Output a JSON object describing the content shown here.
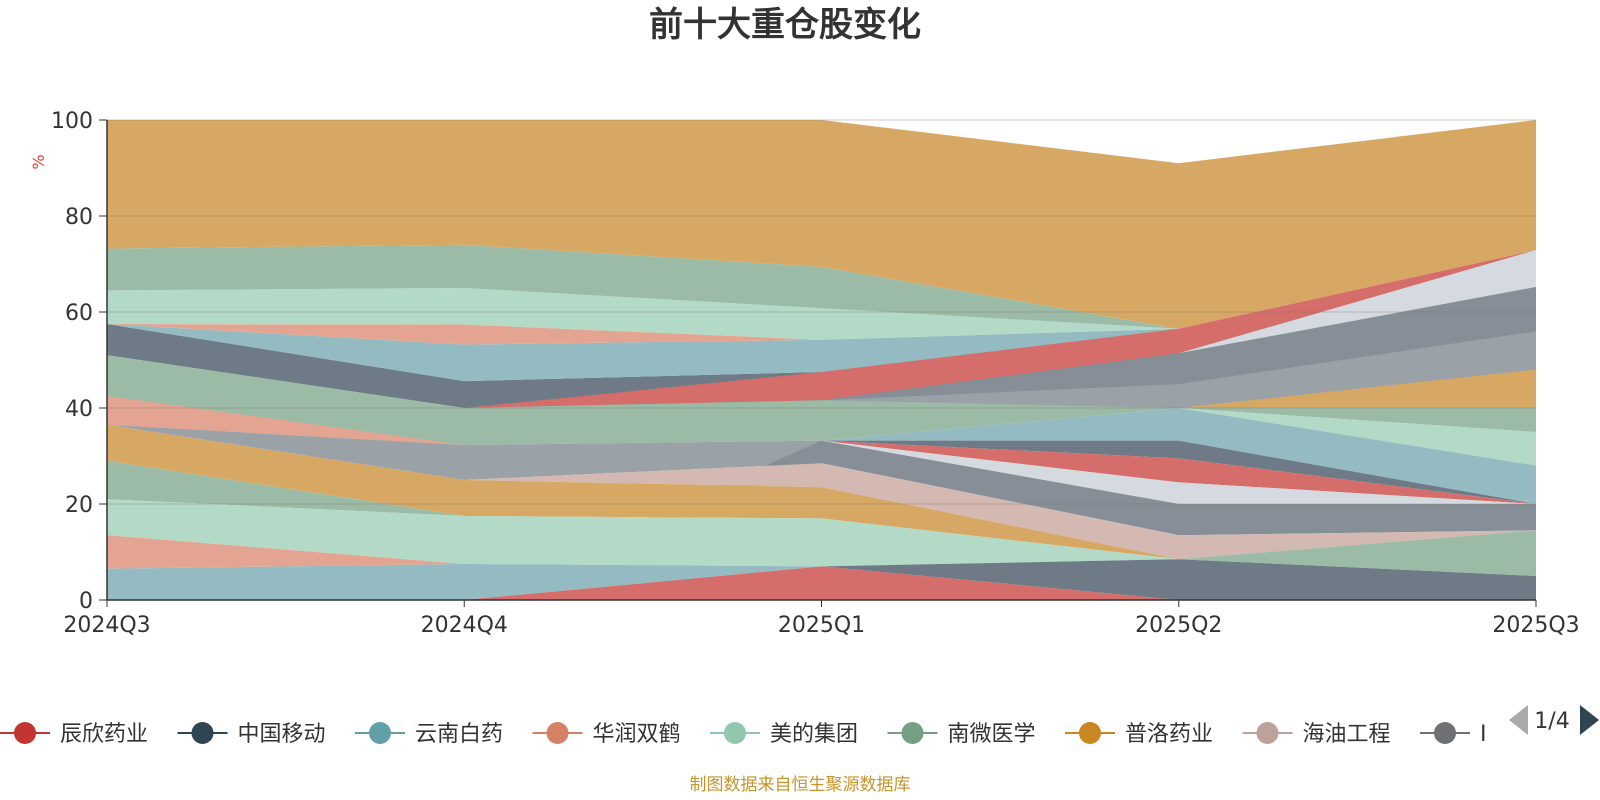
{
  "chart_data": {
    "type": "area",
    "title": "前十大重仓股变化",
    "ylabel": "%",
    "ylim": [
      0,
      100
    ],
    "yticks": [
      "0",
      "20",
      "40",
      "60",
      "80",
      "100"
    ],
    "categories": [
      "2024Q3",
      "2024Q4",
      "2025Q1",
      "2025Q2",
      "2025Q3"
    ],
    "bands": [
      {
        "name": "band-01",
        "color": "#6e7b87",
        "lower": [
          51.0,
          40.0,
          40.0,
          40.0,
          40.0
        ],
        "upper": [
          57.5,
          45.6,
          47.5,
          51.4,
          65.2
        ]
      },
      {
        "name": "band-02",
        "color": "#d4a7a1",
        "lower": [
          0,
          0,
          0,
          0,
          0
        ],
        "upper": [
          0,
          0,
          0,
          0,
          0
        ]
      },
      {
        "name": "band-03",
        "color": "#93bbc1",
        "lower": [
          57.5,
          45.6,
          47.5,
          51.4,
          65.2
        ],
        "upper": [
          57.5,
          53.2,
          54.2,
          56.5,
          65.2
        ]
      },
      {
        "name": "band-04",
        "color": "#e3a592",
        "lower": [
          57.5,
          53.2,
          54.2,
          56.5,
          65.2
        ],
        "upper": [
          57.5,
          57.4,
          54.2,
          56.5,
          65.2
        ]
      },
      {
        "name": "band-05",
        "color": "#b3dac7",
        "lower": [
          57.5,
          57.4,
          54.2,
          56.5,
          65.2
        ],
        "upper": [
          64.5,
          65.0,
          60.8,
          56.5,
          65.2
        ]
      },
      {
        "name": "band-06",
        "color": "#9cbba6",
        "lower": [
          64.5,
          65.0,
          60.8,
          56.5,
          65.2
        ],
        "upper": [
          73.2,
          74.0,
          69.4,
          56.5,
          65.2
        ]
      },
      {
        "name": "band-07",
        "color": "#d6a864",
        "lower": [
          73.2,
          74.0,
          69.4,
          56.5,
          72.9
        ],
        "upper": [
          100,
          100,
          100,
          91.0,
          100
        ]
      },
      {
        "name": "band-08",
        "color": "#d56d6b",
        "lower": [
          0,
          40.0,
          41.6,
          51.4,
          72.9
        ],
        "upper": [
          0,
          40.0,
          47.5,
          56.5,
          72.9
        ]
      },
      {
        "name": "band-09",
        "color": "#d5dae1",
        "lower": [
          0,
          0,
          0,
          51.4,
          65.2
        ],
        "upper": [
          0,
          0,
          0,
          51.4,
          72.9
        ]
      },
      {
        "name": "band-10",
        "color": "#868f98",
        "lower": [
          40.0,
          40.0,
          41.6,
          45.0,
          56.0
        ],
        "upper": [
          40.0,
          40.0,
          41.6,
          51.4,
          65.2
        ]
      },
      {
        "name": "band-11",
        "color": "#9aa2a8",
        "lower": [
          40.0,
          40.0,
          40.0,
          40.0,
          48.0
        ],
        "upper": [
          40.0,
          40.0,
          41.6,
          45.0,
          56.0
        ]
      },
      {
        "name": "band-12",
        "color": "#d4b8b2",
        "lower": [
          40.0,
          40.0,
          40.0,
          40.0,
          40.0
        ],
        "upper": [
          40.0,
          40.0,
          40.0,
          40.0,
          48.0
        ]
      },
      {
        "name": "band-13",
        "color": "#d6a864",
        "lower": [
          0,
          0,
          0,
          40.0,
          40.0
        ],
        "upper": [
          0,
          0,
          0,
          40.0,
          48.0
        ]
      },
      {
        "name": "band-14",
        "color": "#9cbba6",
        "lower": [
          36.5,
          32.3,
          33.2,
          40.0,
          35.0
        ],
        "upper": [
          51.0,
          40.0,
          41.6,
          40.0,
          40.0
        ]
      },
      {
        "name": "band-15",
        "color": "#b3dac7",
        "lower": [
          0,
          0,
          0,
          40.0,
          28.0
        ],
        "upper": [
          0,
          0,
          0,
          40.0,
          35.0
        ]
      },
      {
        "name": "band-16",
        "color": "#93bbc1",
        "lower": [
          0,
          0,
          33.2,
          33.2,
          20.0
        ],
        "upper": [
          0,
          0,
          33.2,
          40.0,
          28.0
        ]
      },
      {
        "name": "band-17",
        "color": "#6e7b87",
        "lower": [
          0,
          0,
          33.2,
          29.5,
          20.0
        ],
        "upper": [
          0,
          0,
          33.2,
          33.2,
          20.0
        ]
      },
      {
        "name": "band-18",
        "color": "#d56d6b",
        "lower": [
          0,
          0,
          33.2,
          24.5,
          20.0
        ],
        "upper": [
          0,
          0,
          33.2,
          29.5,
          20.0
        ]
      },
      {
        "name": "band-19",
        "color": "#d5dae1",
        "lower": [
          0,
          0,
          33.2,
          20.0,
          20.0
        ],
        "upper": [
          0,
          0,
          33.2,
          24.5,
          20.0
        ]
      },
      {
        "name": "band-20",
        "color": "#e3a592",
        "lower": [
          36.5,
          32.3,
          33.2,
          33.2,
          20.0
        ],
        "upper": [
          42.5,
          32.3,
          33.2,
          33.2,
          20.0
        ]
      },
      {
        "name": "band-21",
        "color": "#9aa2a8",
        "lower": [
          36.5,
          25.0,
          28.5,
          20.0,
          20.0
        ],
        "upper": [
          36.5,
          32.3,
          33.2,
          20.0,
          20.0
        ]
      },
      {
        "name": "band-22",
        "color": "#868f98",
        "lower": [
          0,
          0,
          28.5,
          13.5,
          14.5
        ],
        "upper": [
          0,
          0,
          33.2,
          20.0,
          20.0
        ]
      },
      {
        "name": "band-23",
        "color": "#d4b8b2",
        "lower": [
          0,
          25.0,
          23.5,
          8.5,
          14.5
        ],
        "upper": [
          0,
          25.0,
          28.5,
          13.5,
          14.5
        ]
      },
      {
        "name": "band-24",
        "color": "#d6a864",
        "lower": [
          29.0,
          17.5,
          17.0,
          8.5,
          14.5
        ],
        "upper": [
          36.5,
          25.0,
          23.5,
          8.5,
          14.5
        ]
      },
      {
        "name": "band-25",
        "color": "#9cbba6",
        "lower": [
          21.0,
          17.5,
          0,
          8.5,
          5.0
        ],
        "upper": [
          29.0,
          17.5,
          0,
          8.5,
          14.5
        ]
      },
      {
        "name": "band-26",
        "color": "#b3dac7",
        "lower": [
          13.5,
          7.5,
          7.0,
          8.5,
          5.0
        ],
        "upper": [
          21.0,
          17.5,
          17.0,
          8.5,
          5.0
        ]
      },
      {
        "name": "band-27",
        "color": "#e3a592",
        "lower": [
          6.5,
          7.5,
          7.0,
          8.5,
          5.0
        ],
        "upper": [
          13.5,
          7.5,
          7.0,
          8.5,
          5.0
        ]
      },
      {
        "name": "band-28",
        "color": "#93bbc1",
        "lower": [
          0,
          0,
          7.0,
          8.5,
          5.0
        ],
        "upper": [
          6.5,
          7.5,
          7.0,
          8.5,
          5.0
        ]
      },
      {
        "name": "band-29",
        "color": "#6e7b87",
        "lower": [
          0,
          0,
          7.0,
          0,
          0
        ],
        "upper": [
          0,
          0,
          7.0,
          8.5,
          5.0
        ]
      },
      {
        "name": "band-30",
        "color": "#d56d6b",
        "lower": [
          0,
          0,
          0,
          0,
          0
        ],
        "upper": [
          0,
          0,
          7.0,
          0,
          0
        ]
      }
    ],
    "legend": [
      {
        "name": "辰欣药业",
        "color": "#c23531"
      },
      {
        "name": "中国移动",
        "color": "#2f4554"
      },
      {
        "name": "云南白药",
        "color": "#61a0a8"
      },
      {
        "name": "华润双鹤",
        "color": "#d48265"
      },
      {
        "name": "美的集团",
        "color": "#91c7ae"
      },
      {
        "name": "南微医学",
        "color": "#749f83"
      },
      {
        "name": "普洛药业",
        "color": "#ca8622"
      },
      {
        "name": "海油工程",
        "color": "#bda29a"
      },
      {
        "name": "I",
        "color": "#6e7074"
      }
    ],
    "pager": "1/4",
    "source": "制图数据来自恒生聚源数据库"
  }
}
